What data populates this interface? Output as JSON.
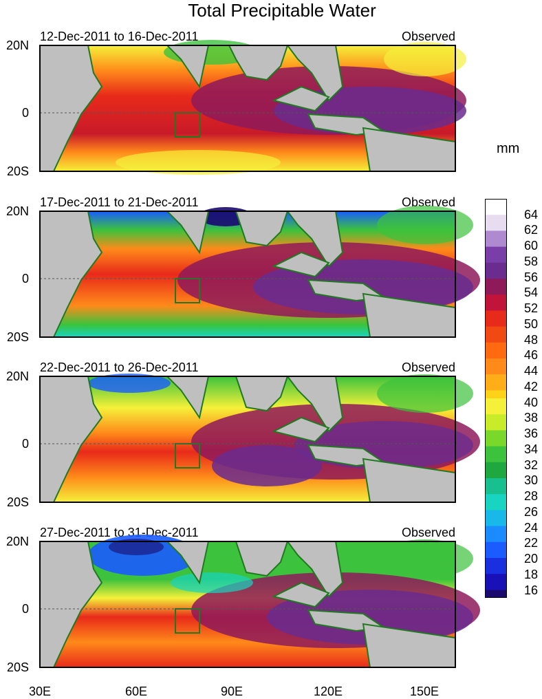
{
  "title": "Total Precipitable Water",
  "units": "mm",
  "source_label": "Observed",
  "panels": [
    {
      "dates": "12-Dec-2011 to 16-Dec-2011"
    },
    {
      "dates": "17-Dec-2011 to 21-Dec-2011"
    },
    {
      "dates": "22-Dec-2011 to 26-Dec-2011"
    },
    {
      "dates": "27-Dec-2011 to 31-Dec-2011"
    }
  ],
  "lat_labels": [
    "20N",
    "0",
    "20S"
  ],
  "lon_labels": [
    "30E",
    "60E",
    "90E",
    "120E",
    "150E"
  ],
  "colorbar": {
    "labels": [
      "64",
      "62",
      "60",
      "58",
      "56",
      "54",
      "52",
      "50",
      "48",
      "46",
      "44",
      "42",
      "40",
      "38",
      "36",
      "34",
      "32",
      "30",
      "28",
      "26",
      "24",
      "22",
      "20",
      "18",
      "16"
    ],
    "min": 15,
    "max": 66
  },
  "map_colors": {
    "land": "#bfbfbf",
    "coast": "#1f7a1f",
    "purple": "#6a2c8e",
    "magenta": "#8e1a5a",
    "red": "#e82a1a",
    "orange": "#ff8a1a",
    "yellow": "#f5f03a",
    "green": "#3cc23c",
    "cyan": "#18d4c0",
    "blue": "#1a5cff",
    "navy": "#1a0a6e"
  }
}
